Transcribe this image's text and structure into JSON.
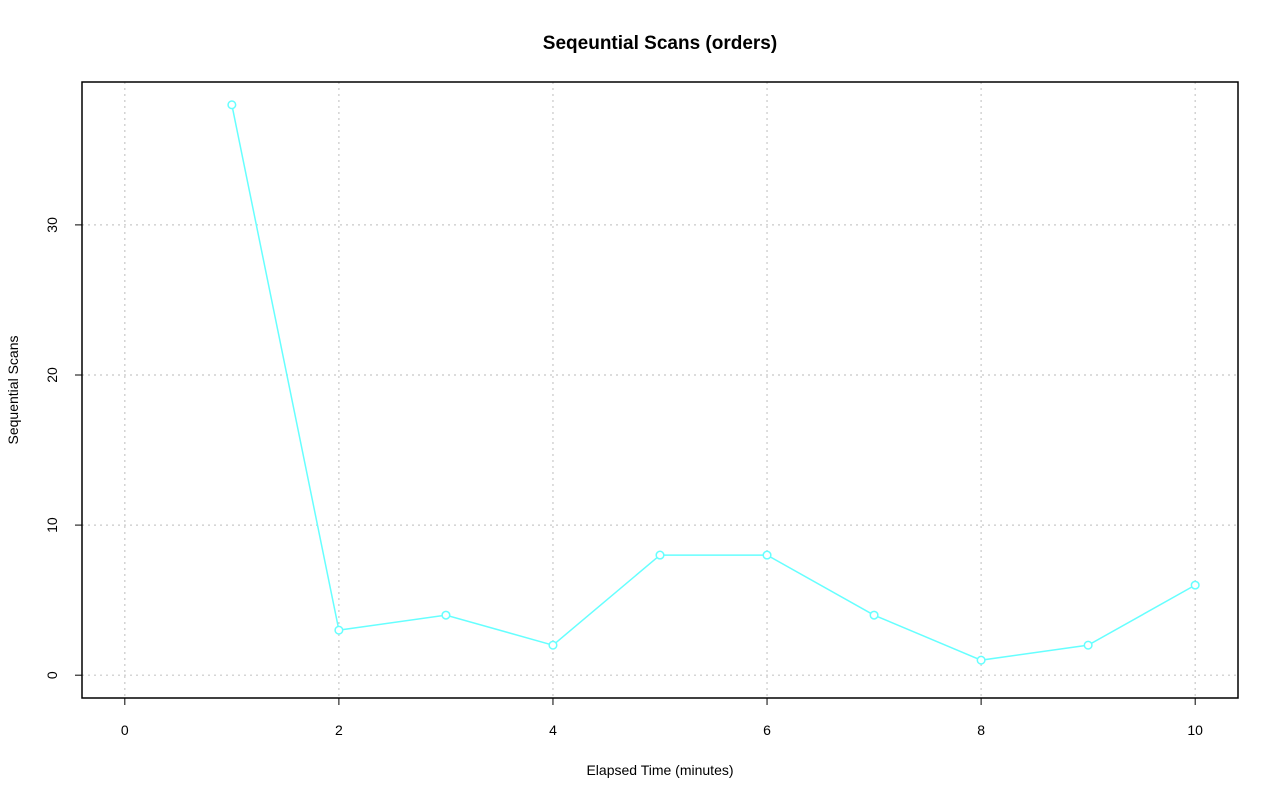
{
  "chart_data": {
    "type": "line",
    "title": "Seqeuntial Scans (orders)",
    "x_label": "Elapsed Time (minutes)",
    "y_label": "Sequential Scans",
    "x": [
      1,
      2,
      3,
      4,
      5,
      6,
      7,
      8,
      9,
      10
    ],
    "values": [
      38,
      3,
      4,
      2,
      8,
      8,
      4,
      1,
      2,
      6
    ],
    "color": "#66ffff",
    "xlim": [
      -0.4,
      10.4
    ],
    "xticks": [
      0,
      2,
      4,
      6,
      8,
      10
    ],
    "ylim": [
      -1.52,
      39.52
    ],
    "yticks": [
      0,
      10,
      20,
      30
    ],
    "grid": true
  }
}
